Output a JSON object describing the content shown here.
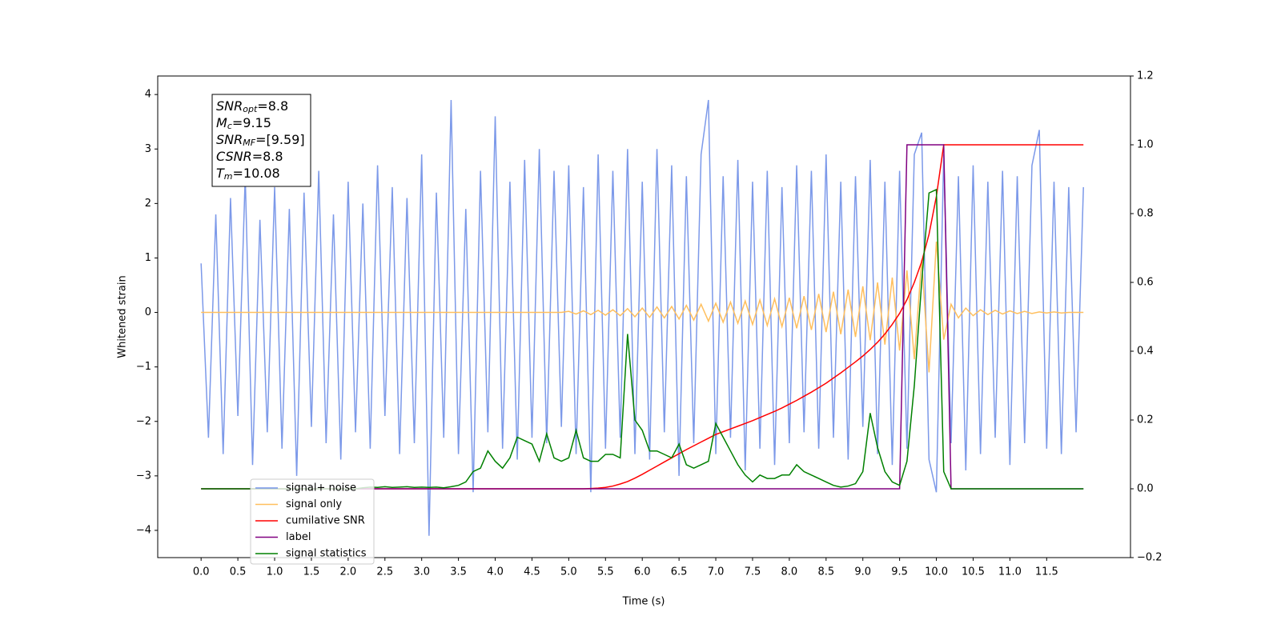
{
  "chart_data": {
    "type": "line",
    "xlabel": "Time (s)",
    "ylabel": "Whitened strain",
    "x": [
      0.0,
      0.1,
      0.2,
      0.3,
      0.4,
      0.5,
      0.6,
      0.7,
      0.8,
      0.9,
      1.0,
      1.1,
      1.2,
      1.3,
      1.4,
      1.5,
      1.6,
      1.7,
      1.8,
      1.9,
      2.0,
      2.1,
      2.2,
      2.3,
      2.4,
      2.5,
      2.6,
      2.7,
      2.8,
      2.9,
      3.0,
      3.1,
      3.2,
      3.3,
      3.4,
      3.5,
      3.6,
      3.7,
      3.8,
      3.9,
      4.0,
      4.1,
      4.2,
      4.3,
      4.4,
      4.5,
      4.6,
      4.7,
      4.8,
      4.9,
      5.0,
      5.1,
      5.2,
      5.3,
      5.4,
      5.5,
      5.6,
      5.7,
      5.8,
      5.9,
      6.0,
      6.1,
      6.2,
      6.3,
      6.4,
      6.5,
      6.6,
      6.7,
      6.8,
      6.9,
      7.0,
      7.1,
      7.2,
      7.3,
      7.4,
      7.5,
      7.6,
      7.7,
      7.8,
      7.9,
      8.0,
      8.1,
      8.2,
      8.3,
      8.4,
      8.5,
      8.6,
      8.7,
      8.8,
      8.9,
      9.0,
      9.1,
      9.2,
      9.3,
      9.4,
      9.5,
      9.6,
      9.7,
      9.8,
      9.9,
      10.0,
      10.1,
      10.2,
      10.3,
      10.4,
      10.5,
      10.6,
      10.7,
      10.8,
      10.9,
      11.0,
      11.1,
      11.2,
      11.3,
      11.4,
      11.5,
      11.6,
      11.7,
      11.8,
      11.9,
      12.0
    ],
    "series": [
      {
        "name": "signal+ noise",
        "color": "#7593e8",
        "axis": "y",
        "values": [
          0.9,
          -2.3,
          1.8,
          -2.6,
          2.1,
          -1.9,
          2.5,
          -2.8,
          1.7,
          -2.2,
          2.3,
          -2.5,
          1.9,
          -3.0,
          2.2,
          -2.1,
          2.6,
          -2.4,
          1.8,
          -2.7,
          2.4,
          -2.2,
          2.0,
          -2.5,
          2.7,
          -1.9,
          2.3,
          -2.6,
          2.1,
          -2.4,
          2.9,
          -4.1,
          2.2,
          -2.3,
          3.9,
          -2.6,
          1.9,
          -3.3,
          2.6,
          -2.2,
          3.6,
          -2.5,
          2.4,
          -2.7,
          2.8,
          -2.3,
          3.0,
          -2.4,
          2.6,
          -2.1,
          2.7,
          -2.6,
          2.3,
          -3.3,
          2.9,
          -2.5,
          2.6,
          -2.3,
          3.0,
          -2.6,
          2.4,
          -2.7,
          3.0,
          -2.2,
          2.7,
          -3.0,
          2.5,
          -2.4,
          2.9,
          3.9,
          -2.6,
          2.5,
          -2.3,
          2.8,
          -2.9,
          2.4,
          -2.5,
          2.6,
          -2.8,
          2.3,
          -2.4,
          2.7,
          -2.2,
          2.6,
          -2.5,
          2.9,
          -2.3,
          2.4,
          -2.7,
          2.5,
          -2.1,
          2.8,
          -2.6,
          2.4,
          -2.8,
          2.6,
          -2.5,
          2.9,
          3.3,
          -2.7,
          -3.3,
          2.9,
          -2.4,
          2.5,
          -2.9,
          2.7,
          -2.6,
          2.4,
          -2.3,
          2.6,
          -2.8,
          2.5,
          -2.4,
          2.7,
          3.35,
          -2.5,
          2.4,
          -2.6,
          2.3,
          -2.2,
          2.3
        ]
      },
      {
        "name": "signal only",
        "color": "#ffbf5e",
        "axis": "y",
        "values": [
          0,
          0,
          0,
          0,
          0,
          0,
          0,
          0,
          0,
          0,
          0,
          0,
          0,
          0,
          0,
          0,
          0,
          0,
          0,
          0,
          0,
          0,
          0,
          0,
          0,
          0,
          0,
          0,
          0,
          0,
          0,
          0,
          0,
          0,
          0,
          0,
          0,
          0,
          0,
          0,
          0,
          0,
          0,
          0,
          0,
          0,
          0,
          0,
          0,
          0,
          0.02,
          -0.03,
          0.03,
          -0.04,
          0.04,
          -0.05,
          0.05,
          -0.06,
          0.07,
          -0.08,
          0.08,
          -0.09,
          0.1,
          -0.1,
          0.11,
          -0.12,
          0.13,
          -0.14,
          0.15,
          -0.16,
          0.17,
          -0.18,
          0.19,
          -0.2,
          0.21,
          -0.22,
          0.23,
          -0.24,
          0.25,
          -0.26,
          0.27,
          -0.29,
          0.3,
          -0.32,
          0.34,
          -0.36,
          0.38,
          -0.4,
          0.42,
          -0.45,
          0.48,
          -0.51,
          0.55,
          -0.59,
          0.64,
          -0.7,
          0.77,
          -0.86,
          0.97,
          -1.1,
          1.3,
          -0.5,
          0.15,
          -0.1,
          0.08,
          -0.06,
          0.05,
          -0.04,
          0.04,
          -0.03,
          0.03,
          -0.02,
          0.02,
          -0.02,
          0.01,
          -0.01,
          0.01,
          -0.01,
          0,
          0,
          0
        ]
      },
      {
        "name": "cumilative SNR",
        "color": "#ff0000",
        "axis": "y2",
        "values": [
          0,
          0,
          0,
          0,
          0,
          0,
          0,
          0,
          0,
          0,
          0,
          0,
          0,
          0,
          0,
          0,
          0,
          0,
          0,
          0,
          0,
          0,
          0,
          0,
          0,
          0,
          0,
          0,
          0,
          0,
          0,
          0,
          0,
          0,
          0,
          0,
          0,
          0,
          0,
          0,
          0,
          0,
          0,
          0,
          0,
          0,
          0,
          0,
          0,
          0,
          0,
          0,
          0,
          0.001,
          0.002,
          0.004,
          0.008,
          0.014,
          0.021,
          0.031,
          0.042,
          0.054,
          0.066,
          0.078,
          0.09,
          0.102,
          0.114,
          0.125,
          0.136,
          0.147,
          0.158,
          0.166,
          0.174,
          0.182,
          0.19,
          0.198,
          0.207,
          0.216,
          0.225,
          0.235,
          0.246,
          0.257,
          0.269,
          0.281,
          0.294,
          0.307,
          0.322,
          0.337,
          0.353,
          0.369,
          0.386,
          0.405,
          0.426,
          0.45,
          0.478,
          0.51,
          0.55,
          0.6,
          0.66,
          0.74,
          0.85,
          1.0,
          1.0,
          1.0,
          1.0,
          1.0,
          1.0,
          1.0,
          1.0,
          1.0,
          1.0,
          1.0,
          1.0,
          1.0,
          1.0,
          1.0,
          1.0,
          1.0,
          1.0,
          1.0,
          1.0
        ]
      },
      {
        "name": "label",
        "color": "#800080",
        "axis": "y2",
        "values": [
          0,
          0,
          0,
          0,
          0,
          0,
          0,
          0,
          0,
          0,
          0,
          0,
          0,
          0,
          0,
          0,
          0,
          0,
          0,
          0,
          0,
          0,
          0,
          0,
          0,
          0,
          0,
          0,
          0,
          0,
          0,
          0,
          0,
          0,
          0,
          0,
          0,
          0,
          0,
          0,
          0,
          0,
          0,
          0,
          0,
          0,
          0,
          0,
          0,
          0,
          0,
          0,
          0,
          0,
          0,
          0,
          0,
          0,
          0,
          0,
          0,
          0,
          0,
          0,
          0,
          0,
          0,
          0,
          0,
          0,
          0,
          0,
          0,
          0,
          0,
          0,
          0,
          0,
          0,
          0,
          0,
          0,
          0,
          0,
          0,
          0,
          0,
          0,
          0,
          0,
          0,
          0,
          0,
          0,
          0,
          0,
          1,
          1,
          1,
          1,
          1,
          1,
          0,
          0,
          0,
          0,
          0,
          0,
          0,
          0,
          0,
          0,
          0,
          0,
          0,
          0,
          0,
          0,
          0,
          0,
          0
        ]
      },
      {
        "name": "signal statistics",
        "color": "#008000",
        "axis": "y2",
        "values": [
          0,
          0,
          0,
          0,
          0,
          0,
          0,
          0,
          0,
          0,
          0,
          0,
          0,
          0,
          0,
          0,
          0,
          0,
          0,
          0,
          0,
          0,
          0.003,
          0.005,
          0.004,
          0.006,
          0.004,
          0.005,
          0.006,
          0.004,
          0.005,
          0.004,
          0.005,
          0.003,
          0.006,
          0.01,
          0.02,
          0.05,
          0.06,
          0.11,
          0.08,
          0.06,
          0.09,
          0.15,
          0.14,
          0.13,
          0.08,
          0.16,
          0.09,
          0.08,
          0.09,
          0.17,
          0.09,
          0.08,
          0.08,
          0.1,
          0.1,
          0.09,
          0.45,
          0.2,
          0.17,
          0.11,
          0.11,
          0.1,
          0.09,
          0.13,
          0.07,
          0.06,
          0.07,
          0.08,
          0.19,
          0.15,
          0.11,
          0.07,
          0.04,
          0.02,
          0.04,
          0.03,
          0.03,
          0.04,
          0.04,
          0.07,
          0.05,
          0.04,
          0.03,
          0.02,
          0.01,
          0.005,
          0.008,
          0.015,
          0.05,
          0.22,
          0.12,
          0.05,
          0.02,
          0.01,
          0.08,
          0.3,
          0.6,
          0.86,
          0.87,
          0.05,
          0,
          0,
          0,
          0,
          0,
          0,
          0,
          0,
          0,
          0,
          0,
          0,
          0,
          0,
          0,
          0,
          0,
          0,
          0
        ]
      }
    ],
    "xlim": [
      -0.59,
      12.64
    ],
    "xticks": [
      {
        "value": 0,
        "label": "0.0"
      },
      0.5,
      {
        "value": 1,
        "label": "1.0"
      },
      1.5,
      {
        "value": 2,
        "label": "2.0"
      },
      2.5,
      {
        "value": 3,
        "label": "3.0"
      },
      3.5,
      {
        "value": 4,
        "label": "4.0"
      },
      4.5,
      {
        "value": 5,
        "label": "5.0"
      },
      5.5,
      {
        "value": 6,
        "label": "6.0"
      },
      6.5,
      {
        "value": 7,
        "label": "7.0"
      },
      7.5,
      {
        "value": 8,
        "label": "8.0"
      },
      8.5,
      {
        "value": 9,
        "label": "9.0"
      },
      9.5,
      {
        "value": 10,
        "label": "10.0"
      },
      10.5,
      {
        "value": 11,
        "label": "11.0"
      },
      11.5
    ],
    "ylim": [
      -4.5,
      4.34
    ],
    "yticks": [
      {
        "value": -4,
        "label": "−4"
      },
      {
        "value": -3,
        "label": "−3"
      },
      {
        "value": -2,
        "label": "−2"
      },
      {
        "value": -1,
        "label": "−1"
      },
      0,
      1,
      2,
      3,
      4
    ],
    "y2lim": [
      -0.2,
      1.2
    ],
    "y2ticks": [
      {
        "value": -0.2,
        "label": "−0.2"
      },
      {
        "value": 0,
        "label": "0.0"
      },
      0.2,
      0.4,
      0.6,
      0.8,
      {
        "value": 1,
        "label": "1.0"
      },
      1.2
    ],
    "legend": "lower left",
    "grid": false,
    "annotation": [
      {
        "base": "SNR",
        "sub": "opt",
        "value": "=8.8"
      },
      {
        "base": "M",
        "sub": "c",
        "value": "=9.15"
      },
      {
        "base": "SNR",
        "sub": "MF",
        "value": "=[9.59]"
      },
      {
        "base": "CSNR",
        "sub": null,
        "value": "=8.8"
      },
      {
        "base": "T",
        "sub": "m",
        "value": "=10.08"
      }
    ]
  }
}
